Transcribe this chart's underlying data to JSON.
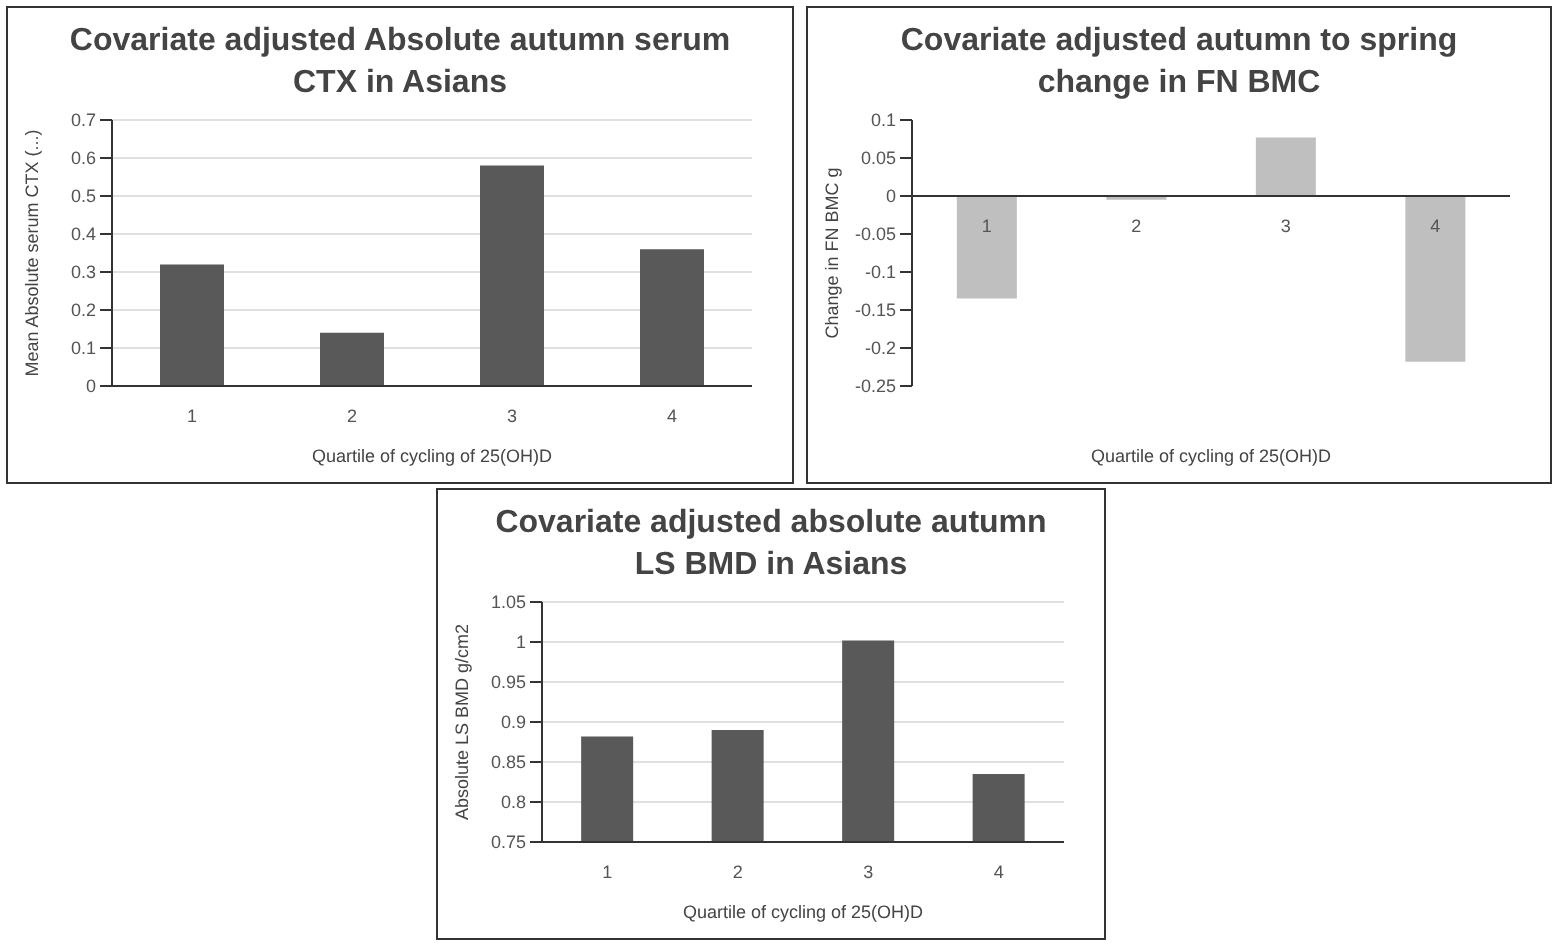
{
  "chart_data": [
    {
      "type": "bar",
      "title": "Covariate adjusted Absolute autumn serum CTX in Asians",
      "xlabel": "Quartile of cycling of 25(OH)D",
      "ylabel": "Mean Absolute serum CTX (...)",
      "categories": [
        "1",
        "2",
        "3",
        "4"
      ],
      "values": [
        0.32,
        0.14,
        0.58,
        0.36
      ],
      "color": "#595959",
      "ylim": [
        0,
        0.7
      ],
      "yticks": [
        0,
        0.1,
        0.2,
        0.3,
        0.4,
        0.5,
        0.6,
        0.7
      ],
      "grid": "y",
      "legend": false
    },
    {
      "type": "bar",
      "title": "Covariate adjusted autumn to spring change in FN BMC",
      "xlabel": "Quartile of cycling of 25(OH)D",
      "ylabel": "Change in FN BMC g",
      "categories": [
        "1",
        "2",
        "3",
        "4"
      ],
      "values": [
        -0.135,
        -0.005,
        0.077,
        -0.218
      ],
      "color": "#bfbfbf",
      "ylim": [
        -0.25,
        0.1
      ],
      "yticks": [
        -0.25,
        -0.2,
        -0.15,
        -0.1,
        -0.05,
        0,
        0.05,
        0.1
      ],
      "grid": false,
      "legend": false
    },
    {
      "type": "bar",
      "title": "Covariate adjusted absolute autumn LS BMD in Asians",
      "xlabel": "Quartile of cycling of 25(OH)D",
      "ylabel": "Absolute LS BMD g/cm2",
      "categories": [
        "1",
        "2",
        "3",
        "4"
      ],
      "values": [
        0.882,
        0.89,
        1.002,
        0.835
      ],
      "color": "#595959",
      "ylim": [
        0.75,
        1.05
      ],
      "yticks": [
        0.75,
        0.8,
        0.85,
        0.9,
        0.95,
        1,
        1.05
      ],
      "grid": "y",
      "legend": false
    }
  ]
}
